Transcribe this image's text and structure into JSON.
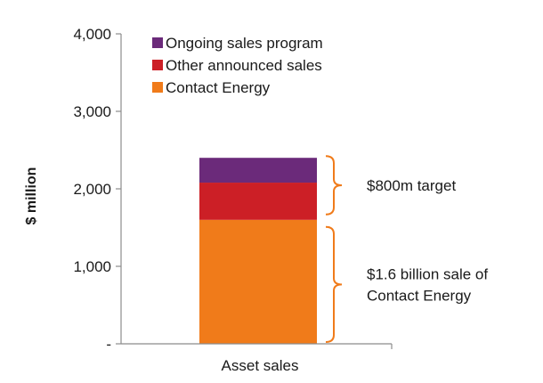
{
  "chart_data": {
    "type": "bar",
    "stacked": true,
    "categories": [
      "Asset sales"
    ],
    "series": [
      {
        "name": "Contact Energy",
        "values": [
          1600
        ],
        "color": "#f07b1a"
      },
      {
        "name": "Other announced sales",
        "values": [
          480
        ],
        "color": "#cc1f26"
      },
      {
        "name": "Ongoing sales program",
        "values": [
          320
        ],
        "color": "#6b2a7a"
      }
    ],
    "legend_order": [
      "Ongoing sales program",
      "Other announced sales",
      "Contact Energy"
    ],
    "legend_placement": "top-left",
    "ylabel": "$ million",
    "xlabel": "",
    "ylim": [
      0,
      4000
    ],
    "yticks": [
      {
        "value": 0,
        "label": "-"
      },
      {
        "value": 1000,
        "label": "1,000"
      },
      {
        "value": 2000,
        "label": "2,000"
      },
      {
        "value": 3000,
        "label": "3,000"
      },
      {
        "value": 4000,
        "label": "4,000"
      }
    ],
    "grid": false,
    "annotations": [
      {
        "lines": [
          "$800m target"
        ],
        "from": 1600,
        "to": 2400
      },
      {
        "lines": [
          "$1.6 billion sale of",
          "Contact Energy"
        ],
        "from": 0,
        "to": 1600
      }
    ],
    "bracket_color": "#f07b1a"
  }
}
